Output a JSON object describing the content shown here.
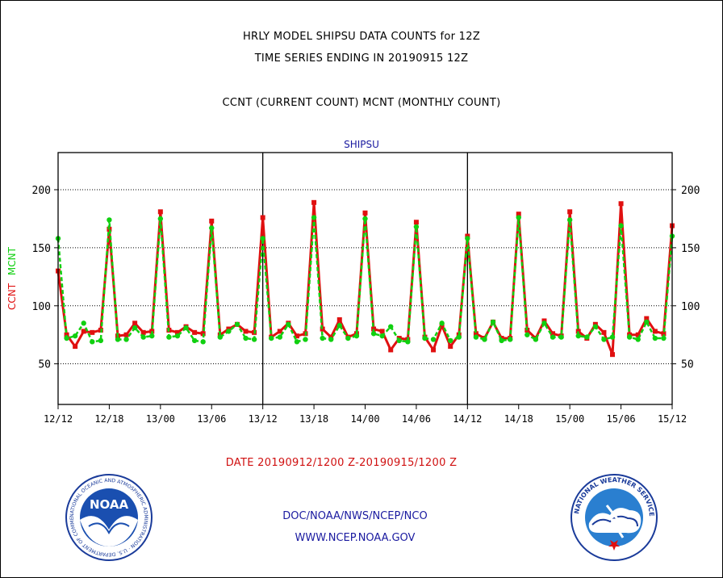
{
  "header": {
    "title1": "HRLY MODEL SHIPSU DATA COUNTS for 12Z",
    "title2": "TIME SERIES ENDING IN 20190915 12Z",
    "subtitle": "CCNT (CURRENT COUNT) MCNT (MONTHLY COUNT)"
  },
  "footer": {
    "date_range": "DATE 20190912/1200 Z-20190915/1200 Z",
    "credit": "DOC/NOAA/NWS/NCEP/NCO",
    "url": "WWW.NCEP.NOAA.GOV"
  },
  "logos": {
    "noaa": "NOAA",
    "noaa_ring": "NATIONAL OCEANIC AND ATMOSPHERIC ADMINISTRATION · U.S. DEPARTMENT OF COMMERCE",
    "nws_ring": "NATIONAL WEATHER SERVICE"
  },
  "chart_data": {
    "type": "line",
    "title": "SHIPSU",
    "ylabel_parts": [
      {
        "text": "CCNT",
        "color": "#e01010"
      },
      {
        "text": "MCNT",
        "color": "#10d010"
      }
    ],
    "ylim": [
      15,
      232
    ],
    "yticks": [
      50,
      100,
      150,
      200
    ],
    "grid": true,
    "xlim": [
      0,
      72
    ],
    "xtick_positions": [
      0,
      6,
      12,
      18,
      24,
      30,
      36,
      42,
      48,
      54,
      60,
      66,
      72
    ],
    "xtick_labels": [
      "12/12",
      "12/18",
      "13/00",
      "13/06",
      "13/12",
      "13/18",
      "14/00",
      "14/06",
      "14/12",
      "14/18",
      "15/00",
      "15/06",
      "15/12"
    ],
    "day_boundaries": [
      24,
      48
    ],
    "series": [
      {
        "name": "CCNT",
        "color": "#e01010",
        "values": [
          130,
          75,
          65,
          78,
          77,
          79,
          166,
          74,
          75,
          85,
          77,
          78,
          181,
          79,
          77,
          82,
          77,
          76,
          173,
          75,
          80,
          84,
          78,
          77,
          176,
          73,
          78,
          85,
          74,
          76,
          189,
          80,
          73,
          88,
          73,
          76,
          180,
          80,
          78,
          62,
          72,
          71,
          172,
          73,
          62,
          83,
          65,
          75,
          160,
          76,
          72,
          86,
          72,
          72,
          179,
          79,
          72,
          87,
          76,
          74,
          181,
          78,
          72,
          84,
          77,
          58,
          188,
          75,
          75,
          89,
          78,
          76,
          169
        ],
        "marker": "square"
      },
      {
        "name": "MCNT",
        "color": "#10d010",
        "values": [
          158,
          72,
          74,
          85,
          69,
          70,
          174,
          71,
          71,
          81,
          73,
          74,
          175,
          73,
          74,
          81,
          70,
          69,
          167,
          73,
          78,
          84,
          72,
          71,
          158,
          72,
          73,
          84,
          69,
          71,
          176,
          72,
          71,
          83,
          72,
          74,
          175,
          76,
          74,
          82,
          70,
          69,
          168,
          72,
          71,
          85,
          70,
          73,
          158,
          73,
          71,
          86,
          70,
          71,
          176,
          75,
          71,
          85,
          73,
          73,
          174,
          74,
          73,
          82,
          71,
          73,
          169,
          73,
          71,
          86,
          72,
          72,
          160
        ],
        "marker": "circle"
      }
    ]
  }
}
